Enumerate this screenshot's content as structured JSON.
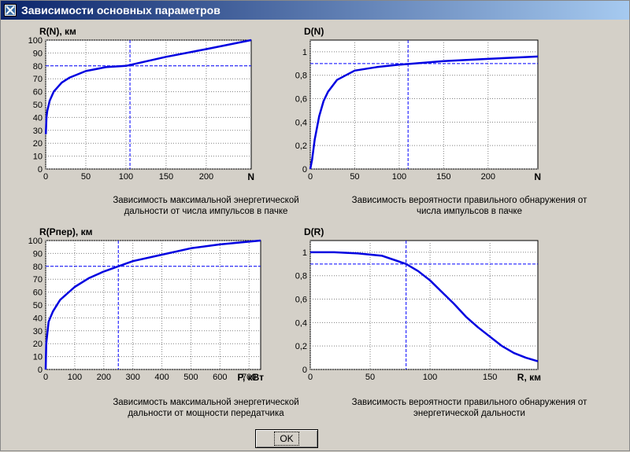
{
  "window": {
    "title": "Зависимости основных параметров"
  },
  "ok_label": "OK",
  "chart_data": [
    {
      "type": "line",
      "title": "R(N), км",
      "xlabel": "N",
      "xticks": [
        "0",
        "50",
        "100",
        "150",
        "200"
      ],
      "yticks": [
        "0",
        "10",
        "20",
        "30",
        "40",
        "50",
        "60",
        "70",
        "80",
        "90",
        "100"
      ],
      "xlim": [
        0,
        256
      ],
      "ylim": [
        0,
        100
      ],
      "grid": true,
      "series": [
        {
          "values": [
            [
              0.2,
              27
            ],
            [
              1,
              40
            ],
            [
              2,
              45
            ],
            [
              5,
              53
            ],
            [
              10,
              60
            ],
            [
              20,
              67
            ],
            [
              30,
              71
            ],
            [
              50,
              76
            ],
            [
              75,
              79
            ],
            [
              100,
              80
            ],
            [
              150,
              87
            ],
            [
              200,
              93
            ],
            [
              256,
              100
            ]
          ]
        }
      ],
      "hline": 80,
      "vline": 105,
      "caption": [
        "Зависимость максимальной энергетической",
        "дальности от числа импульсов в пачке"
      ]
    },
    {
      "type": "line",
      "title": "D(N)",
      "xlabel": "N",
      "xticks": [
        "0",
        "50",
        "100",
        "150",
        "200"
      ],
      "yticks": [
        "0",
        "0,2",
        "0,4",
        "0,6",
        "0,8",
        "1"
      ],
      "xlim": [
        0,
        256
      ],
      "ylim": [
        0,
        1.1
      ],
      "grid": true,
      "series": [
        {
          "values": [
            [
              0,
              0
            ],
            [
              2,
              0.08
            ],
            [
              5,
              0.25
            ],
            [
              10,
              0.45
            ],
            [
              15,
              0.58
            ],
            [
              20,
              0.66
            ],
            [
              30,
              0.76
            ],
            [
              40,
              0.8
            ],
            [
              50,
              0.84
            ],
            [
              75,
              0.87
            ],
            [
              100,
              0.89
            ],
            [
              150,
              0.92
            ],
            [
              200,
              0.94
            ],
            [
              256,
              0.96
            ]
          ]
        }
      ],
      "hline": 0.9,
      "vline": 110,
      "caption": [
        "Зависимость вероятности правильного обнаружения от",
        "числа импульсов в пачке"
      ]
    },
    {
      "type": "line",
      "title": "R(Pпер), км",
      "xlabel": "P, кВт",
      "xticks": [
        "0",
        "100",
        "200",
        "300",
        "400",
        "500",
        "600",
        "700"
      ],
      "yticks": [
        "0",
        "10",
        "20",
        "30",
        "40",
        "50",
        "60",
        "70",
        "80",
        "90",
        "100"
      ],
      "xlim": [
        0,
        740
      ],
      "ylim": [
        0,
        100
      ],
      "grid": true,
      "series": [
        {
          "values": [
            [
              0,
              0
            ],
            [
              2,
              20
            ],
            [
              10,
              37
            ],
            [
              25,
              45
            ],
            [
              50,
              54
            ],
            [
              100,
              64
            ],
            [
              150,
              71
            ],
            [
              200,
              76
            ],
            [
              250,
              80
            ],
            [
              300,
              84
            ],
            [
              400,
              89
            ],
            [
              500,
              94
            ],
            [
              600,
              97
            ],
            [
              740,
              100
            ]
          ]
        }
      ],
      "hline": 80,
      "vline": 250,
      "caption": [
        "Зависимость максимальной энергетической",
        "дальности от мощности передатчика"
      ]
    },
    {
      "type": "line",
      "title": "D(R)",
      "xlabel": "R, км",
      "xticks": [
        "0",
        "50",
        "100",
        "150"
      ],
      "yticks": [
        "0",
        "0,2",
        "0,4",
        "0,6",
        "0,8",
        "1"
      ],
      "xlim": [
        0,
        190
      ],
      "ylim": [
        0,
        1.1
      ],
      "grid": true,
      "series": [
        {
          "values": [
            [
              0,
              1
            ],
            [
              20,
              1
            ],
            [
              40,
              0.99
            ],
            [
              60,
              0.97
            ],
            [
              80,
              0.9
            ],
            [
              90,
              0.84
            ],
            [
              100,
              0.76
            ],
            [
              110,
              0.66
            ],
            [
              120,
              0.56
            ],
            [
              130,
              0.45
            ],
            [
              140,
              0.36
            ],
            [
              150,
              0.28
            ],
            [
              160,
              0.2
            ],
            [
              170,
              0.14
            ],
            [
              180,
              0.1
            ],
            [
              190,
              0.07
            ]
          ]
        }
      ],
      "hline": 0.9,
      "vline": 80,
      "caption": [
        "Зависимость вероятности правильного обнаружения от",
        "энергетической дальности"
      ]
    }
  ]
}
